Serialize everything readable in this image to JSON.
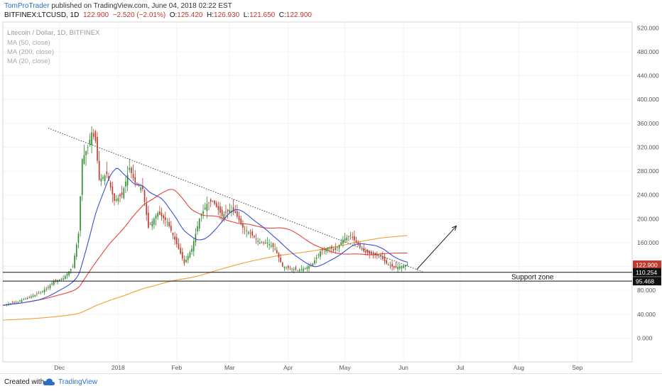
{
  "header": {
    "author": "TomProTrader",
    "published": "published on TradingView.com, June 04, 2018 02:22 EST",
    "symbol": "BITFINEX:LTCUSD, 1D",
    "last": "122.900",
    "change": "−2.520 (−2.01%)",
    "ohlc_open_label": "O:",
    "ohlc_open": "125.420",
    "ohlc_high_label": "H:",
    "ohlc_high": "126.930",
    "ohlc_low_label": "L:",
    "ohlc_low": "121.650",
    "ohlc_close_label": "C:",
    "ohlc_close": "122.900"
  },
  "footer": {
    "created_with": "Created with",
    "brand": "TradingView"
  },
  "colors": {
    "up": "#2e8b2e",
    "down": "#c0392b",
    "ma50": "#e8453c",
    "ma200": "#f0a030",
    "ma20": "#3a4fd8"
  },
  "chart_data": {
    "type": "candlestick",
    "title": "Litecoin / Dollar, 1D, BITFINEX",
    "legend": [
      "MA (50, close)",
      "MA (200, close)",
      "MA (20, close)"
    ],
    "ylim": [
      -40,
      530
    ],
    "y_ticks": [
      0,
      40,
      80,
      120,
      160,
      200,
      240,
      280,
      320,
      360,
      400,
      440,
      480,
      520
    ],
    "y_tick_labels": [
      "0.000",
      "40.000",
      "80.000",
      "120.000",
      "160.000",
      "200.000",
      "240.000",
      "280.000",
      "320.000",
      "360.000",
      "400.000",
      "440.000",
      "480.000",
      "520.000"
    ],
    "x_start": "2017-11-01",
    "x_end": "2018-09-30",
    "x_ticks": [
      {
        "label": "Dec",
        "date": "2017-12-01"
      },
      {
        "label": "2018",
        "date": "2018-01-01"
      },
      {
        "label": "Feb",
        "date": "2018-02-01"
      },
      {
        "label": "Mar",
        "date": "2018-03-01"
      },
      {
        "label": "Apr",
        "date": "2018-04-01"
      },
      {
        "label": "May",
        "date": "2018-05-01"
      },
      {
        "label": "Jun",
        "date": "2018-06-01"
      },
      {
        "label": "Jul",
        "date": "2018-07-01"
      },
      {
        "label": "Aug",
        "date": "2018-08-01"
      },
      {
        "label": "Sep",
        "date": "2018-09-01"
      }
    ],
    "price_tags": [
      {
        "label": "122.900",
        "value": 122.9,
        "color": "#c0392b",
        "text_color": "#ffffff"
      },
      {
        "label": "110.254",
        "value": 110.254,
        "color": "#111111",
        "text_color": "#ffffff"
      },
      {
        "label": "95.468",
        "value": 95.468,
        "color": "#111111",
        "text_color": "#ffffff"
      }
    ],
    "support_zone": {
      "label": "Support zone",
      "top": 110.254,
      "bottom": 95.468
    },
    "trendline": [
      {
        "date": "2017-11-25",
        "value": 352
      },
      {
        "date": "2018-06-12",
        "value": 110
      }
    ],
    "arrow": [
      {
        "date": "2018-06-08",
        "value": 115
      },
      {
        "date": "2018-06-29",
        "value": 188
      }
    ],
    "closes": [
      {
        "date": "2017-11-01",
        "value": 55
      },
      {
        "date": "2017-11-10",
        "value": 62
      },
      {
        "date": "2017-11-20",
        "value": 75
      },
      {
        "date": "2017-11-25",
        "value": 85
      },
      {
        "date": "2017-11-28",
        "value": 95
      },
      {
        "date": "2017-12-03",
        "value": 100
      },
      {
        "date": "2017-12-08",
        "value": 120
      },
      {
        "date": "2017-12-11",
        "value": 175
      },
      {
        "date": "2017-12-13",
        "value": 300
      },
      {
        "date": "2017-12-16",
        "value": 320
      },
      {
        "date": "2017-12-18",
        "value": 345
      },
      {
        "date": "2017-12-20",
        "value": 330
      },
      {
        "date": "2017-12-22",
        "value": 265
      },
      {
        "date": "2017-12-26",
        "value": 275
      },
      {
        "date": "2017-12-30",
        "value": 230
      },
      {
        "date": "2018-01-03",
        "value": 240
      },
      {
        "date": "2018-01-07",
        "value": 285
      },
      {
        "date": "2018-01-10",
        "value": 260
      },
      {
        "date": "2018-01-14",
        "value": 250
      },
      {
        "date": "2018-01-17",
        "value": 185
      },
      {
        "date": "2018-01-22",
        "value": 210
      },
      {
        "date": "2018-01-27",
        "value": 195
      },
      {
        "date": "2018-02-02",
        "value": 150
      },
      {
        "date": "2018-02-05",
        "value": 125
      },
      {
        "date": "2018-02-09",
        "value": 150
      },
      {
        "date": "2018-02-13",
        "value": 200
      },
      {
        "date": "2018-02-17",
        "value": 225
      },
      {
        "date": "2018-02-20",
        "value": 230
      },
      {
        "date": "2018-02-25",
        "value": 205
      },
      {
        "date": "2018-03-01",
        "value": 215
      },
      {
        "date": "2018-03-04",
        "value": 210
      },
      {
        "date": "2018-03-08",
        "value": 185
      },
      {
        "date": "2018-03-12",
        "value": 175
      },
      {
        "date": "2018-03-17",
        "value": 160
      },
      {
        "date": "2018-03-21",
        "value": 160
      },
      {
        "date": "2018-03-25",
        "value": 150
      },
      {
        "date": "2018-03-29",
        "value": 120
      },
      {
        "date": "2018-04-02",
        "value": 117
      },
      {
        "date": "2018-04-06",
        "value": 114
      },
      {
        "date": "2018-04-10",
        "value": 117
      },
      {
        "date": "2018-04-14",
        "value": 125
      },
      {
        "date": "2018-04-18",
        "value": 145
      },
      {
        "date": "2018-04-22",
        "value": 152
      },
      {
        "date": "2018-04-26",
        "value": 148
      },
      {
        "date": "2018-04-30",
        "value": 165
      },
      {
        "date": "2018-05-04",
        "value": 172
      },
      {
        "date": "2018-05-07",
        "value": 160
      },
      {
        "date": "2018-05-11",
        "value": 145
      },
      {
        "date": "2018-05-15",
        "value": 140
      },
      {
        "date": "2018-05-20",
        "value": 137
      },
      {
        "date": "2018-05-23",
        "value": 125
      },
      {
        "date": "2018-05-27",
        "value": 118
      },
      {
        "date": "2018-05-30",
        "value": 120
      },
      {
        "date": "2018-06-03",
        "value": 122.9
      }
    ]
  }
}
